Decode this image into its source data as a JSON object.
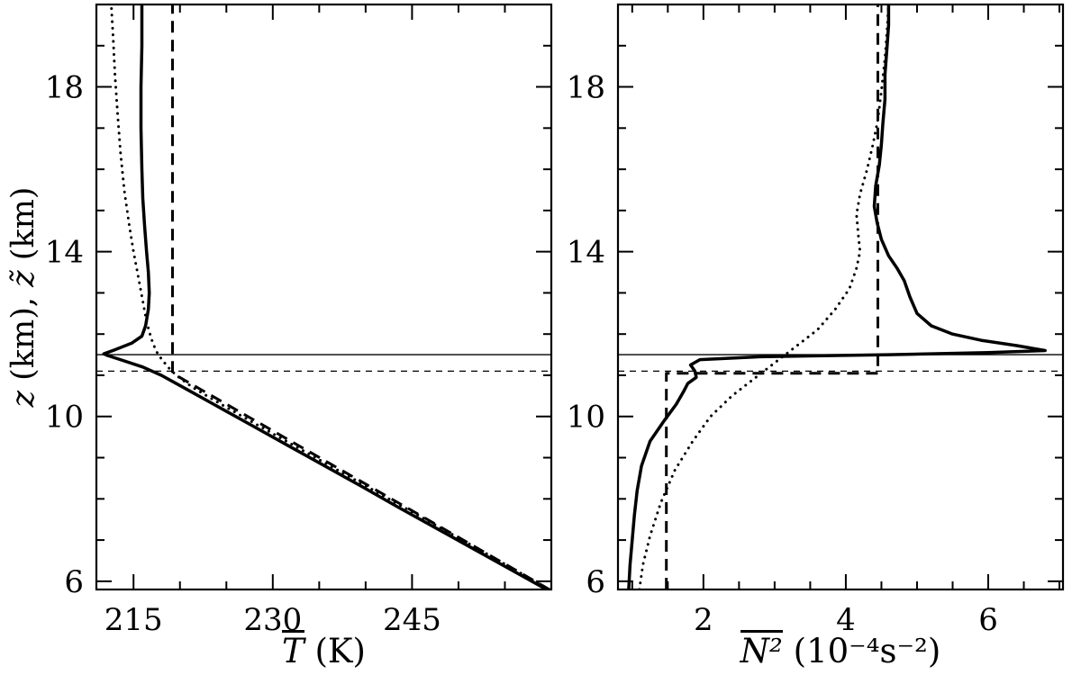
{
  "figure": {
    "background": "#ffffff",
    "ink": "#000000"
  },
  "chart_data": {
    "type": "line",
    "layout": "two vertical-profile panels sharing one height axis, box axes with inward ticks, no grid, no legend",
    "panels": [
      {
        "id": "temperature",
        "xlabel_parts": [
          {
            "text": "T",
            "italic": true,
            "overline": true
          },
          {
            "text": " (K)",
            "italic": false,
            "overline": false
          }
        ],
        "ylabel_parts": [
          {
            "text": "z",
            "italic": true
          },
          {
            "text": " (km), ",
            "italic": false
          },
          {
            "text": "z̃",
            "italic": true
          },
          {
            "text": " (km)",
            "italic": false
          }
        ],
        "xlim": [
          211,
          260
        ],
        "ylim": [
          5.8,
          20
        ],
        "xticks": [
          {
            "value": 215,
            "label": "215"
          },
          {
            "value": 230,
            "label": "230"
          },
          {
            "value": 245,
            "label": "245"
          }
        ],
        "xminor_step": 5,
        "yticks": [
          {
            "value": 6,
            "label": "6"
          },
          {
            "value": 10,
            "label": "10"
          },
          {
            "value": 14,
            "label": "14"
          },
          {
            "value": 18,
            "label": "18"
          }
        ],
        "yminor_step": 1,
        "ref_lines": [
          {
            "z": 11.5,
            "style": "thin-solid"
          },
          {
            "z": 11.1,
            "style": "thin-dashed"
          }
        ],
        "series": [
          {
            "name": "solid-mean-temperature-profile",
            "style": "solid",
            "points": [
              [
                259.5,
                5.8
              ],
              [
                255.5,
                6.3
              ],
              [
                251.5,
                6.8
              ],
              [
                247.5,
                7.3
              ],
              [
                243.5,
                7.8
              ],
              [
                239.6,
                8.3
              ],
              [
                235.6,
                8.8
              ],
              [
                231.6,
                9.3
              ],
              [
                227.6,
                9.8
              ],
              [
                223.6,
                10.3
              ],
              [
                220.4,
                10.7
              ],
              [
                218.0,
                11.0
              ],
              [
                216.0,
                11.2
              ],
              [
                214.0,
                11.35
              ],
              [
                212.2,
                11.48
              ],
              [
                211.8,
                11.52
              ],
              [
                213.0,
                11.62
              ],
              [
                214.8,
                11.78
              ],
              [
                215.9,
                11.95
              ],
              [
                216.3,
                12.2
              ],
              [
                216.6,
                12.6
              ],
              [
                216.7,
                13.0
              ],
              [
                216.6,
                13.5
              ],
              [
                216.4,
                14.0
              ],
              [
                216.2,
                14.6
              ],
              [
                216.0,
                15.3
              ],
              [
                215.9,
                16.0
              ],
              [
                215.8,
                17.0
              ],
              [
                215.8,
                18.0
              ],
              [
                215.9,
                19.0
              ],
              [
                215.9,
                20.0
              ]
            ]
          },
          {
            "name": "dotted-smoothed-temperature-profile",
            "style": "dotted",
            "points": [
              [
                259.8,
                5.8
              ],
              [
                252.0,
                6.8
              ],
              [
                244.1,
                7.8
              ],
              [
                236.2,
                8.8
              ],
              [
                228.3,
                9.8
              ],
              [
                224.4,
                10.3
              ],
              [
                221.4,
                10.7
              ],
              [
                219.6,
                11.0
              ],
              [
                218.7,
                11.2
              ],
              [
                218.0,
                11.4
              ],
              [
                217.4,
                11.6
              ],
              [
                216.9,
                11.9
              ],
              [
                216.4,
                12.3
              ],
              [
                216.0,
                12.8
              ],
              [
                215.5,
                13.4
              ],
              [
                215.0,
                14.0
              ],
              [
                214.5,
                14.7
              ],
              [
                214.0,
                15.5
              ],
              [
                213.6,
                16.4
              ],
              [
                213.3,
                17.3
              ],
              [
                213.0,
                18.3
              ],
              [
                212.8,
                19.2
              ],
              [
                212.6,
                20.0
              ]
            ]
          },
          {
            "name": "dashed-idealized-temperature-profile",
            "style": "dashed",
            "points": [
              [
                259.8,
                5.8
              ],
              [
                219.2,
                11.05
              ],
              [
                219.2,
                20.0
              ]
            ]
          }
        ]
      },
      {
        "id": "buoyancy-frequency",
        "xlabel_parts": [
          {
            "text": "N²",
            "italic": true,
            "overline": true
          },
          {
            "text": " (10⁻⁴s⁻²)",
            "italic": false,
            "overline": false
          }
        ],
        "ylabel_parts": [],
        "xlim": [
          0.8,
          7.05
        ],
        "ylim": [
          5.8,
          20
        ],
        "xticks": [
          {
            "value": 2,
            "label": "2"
          },
          {
            "value": 4,
            "label": "4"
          },
          {
            "value": 6,
            "label": "6"
          }
        ],
        "xminor_step": 0.5,
        "yticks": [
          {
            "value": 6,
            "label": "6"
          },
          {
            "value": 10,
            "label": "10"
          },
          {
            "value": 14,
            "label": "14"
          },
          {
            "value": 18,
            "label": "18"
          }
        ],
        "yminor_step": 1,
        "ref_lines": [
          {
            "z": 11.5,
            "style": "thin-solid"
          },
          {
            "z": 11.1,
            "style": "thin-dashed"
          }
        ],
        "series": [
          {
            "name": "solid-mean-N2-profile",
            "style": "solid",
            "points": [
              [
                0.95,
                5.8
              ],
              [
                0.97,
                6.4
              ],
              [
                1.0,
                7.0
              ],
              [
                1.03,
                7.6
              ],
              [
                1.07,
                8.2
              ],
              [
                1.13,
                8.8
              ],
              [
                1.25,
                9.4
              ],
              [
                1.45,
                9.9
              ],
              [
                1.62,
                10.3
              ],
              [
                1.72,
                10.6
              ],
              [
                1.78,
                10.8
              ],
              [
                1.9,
                10.95
              ],
              [
                1.88,
                11.1
              ],
              [
                1.82,
                11.25
              ],
              [
                1.95,
                11.38
              ],
              [
                2.8,
                11.45
              ],
              [
                4.6,
                11.5
              ],
              [
                6.0,
                11.55
              ],
              [
                6.8,
                11.6
              ],
              [
                6.4,
                11.72
              ],
              [
                5.9,
                11.85
              ],
              [
                5.5,
                12.0
              ],
              [
                5.2,
                12.2
              ],
              [
                5.0,
                12.5
              ],
              [
                4.9,
                12.9
              ],
              [
                4.82,
                13.3
              ],
              [
                4.72,
                13.6
              ],
              [
                4.6,
                13.9
              ],
              [
                4.5,
                14.3
              ],
              [
                4.44,
                14.7
              ],
              [
                4.4,
                15.1
              ],
              [
                4.42,
                15.6
              ],
              [
                4.47,
                16.1
              ],
              [
                4.5,
                16.6
              ],
              [
                4.52,
                17.1
              ],
              [
                4.55,
                17.7
              ],
              [
                4.55,
                18.3
              ],
              [
                4.58,
                19.0
              ],
              [
                4.6,
                19.5
              ],
              [
                4.6,
                20.0
              ]
            ]
          },
          {
            "name": "dotted-smoothed-N2-profile",
            "style": "dotted",
            "points": [
              [
                1.1,
                5.8
              ],
              [
                1.15,
                6.4
              ],
              [
                1.25,
                7.1
              ],
              [
                1.4,
                7.9
              ],
              [
                1.6,
                8.7
              ],
              [
                1.85,
                9.4
              ],
              [
                2.1,
                10.0
              ],
              [
                2.4,
                10.5
              ],
              [
                2.7,
                10.9
              ],
              [
                3.0,
                11.3
              ],
              [
                3.3,
                11.7
              ],
              [
                3.6,
                12.1
              ],
              [
                3.85,
                12.6
              ],
              [
                4.05,
                13.1
              ],
              [
                4.15,
                13.6
              ],
              [
                4.2,
                14.0
              ],
              [
                4.17,
                14.5
              ],
              [
                4.15,
                14.9
              ],
              [
                4.2,
                15.4
              ],
              [
                4.3,
                16.0
              ],
              [
                4.38,
                16.6
              ],
              [
                4.45,
                17.2
              ],
              [
                4.5,
                17.9
              ],
              [
                4.55,
                18.7
              ],
              [
                4.58,
                19.4
              ],
              [
                4.6,
                20.0
              ]
            ]
          },
          {
            "name": "dashed-idealized-N2-profile",
            "style": "dashed",
            "points": [
              [
                1.48,
                5.8
              ],
              [
                1.48,
                11.05
              ],
              [
                4.45,
                11.05
              ],
              [
                4.45,
                20.0
              ]
            ]
          }
        ]
      }
    ]
  }
}
